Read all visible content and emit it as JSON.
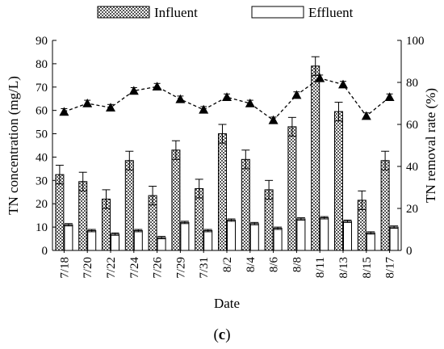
{
  "chart_data": {
    "type": "bar",
    "categories": [
      "7/18",
      "7/20",
      "7/22",
      "7/24",
      "7/26",
      "7/29",
      "7/31",
      "8/2",
      "8/4",
      "8/6",
      "8/8",
      "8/11",
      "8/13",
      "8/15",
      "8/17"
    ],
    "series": [
      {
        "name": "Influent",
        "axis": "left",
        "values": [
          32.5,
          29.5,
          22,
          38.5,
          23.5,
          43,
          26.5,
          50,
          39,
          26,
          53,
          79,
          59.5,
          21.5,
          38.5
        ],
        "errors": [
          4,
          4,
          4,
          4,
          4,
          4,
          4,
          4,
          4,
          4,
          4,
          4,
          4,
          4,
          4
        ]
      },
      {
        "name": "Effluent",
        "axis": "left",
        "values": [
          11,
          8.5,
          7,
          8.5,
          5.5,
          12,
          8.5,
          13,
          11.5,
          9.5,
          13.5,
          14,
          12.5,
          7.5,
          10
        ],
        "errors": [
          0.5,
          0.5,
          0.5,
          0.5,
          0.5,
          0.5,
          0.5,
          0.5,
          0.5,
          0.5,
          0.5,
          0.5,
          0.5,
          0.5,
          0.5
        ]
      },
      {
        "name": "TN removal rate",
        "axis": "right",
        "style": "dashed-line-triangle",
        "values": [
          66,
          70,
          68,
          76,
          78,
          72,
          67,
          73,
          70,
          62,
          74,
          82,
          79,
          64,
          73
        ],
        "errors": [
          1.5,
          1.5,
          1.5,
          1.5,
          1.5,
          1.5,
          1.5,
          1.5,
          1.5,
          1.5,
          1.5,
          1.5,
          1.5,
          1.5,
          1.5
        ]
      }
    ],
    "xlabel": "Date",
    "ylabel": "TN concentration (mg/L)",
    "y2label": "TN removal rate (%)",
    "ylim": [
      0,
      90
    ],
    "yticks": [
      0,
      10,
      20,
      30,
      40,
      50,
      60,
      70,
      80,
      90
    ],
    "y2lim": [
      0,
      100
    ],
    "y2ticks": [
      0,
      20,
      40,
      60,
      80,
      100
    ],
    "legend": {
      "placement": "top",
      "entries": [
        "Influent",
        "Effluent"
      ]
    },
    "grid": false,
    "colors": {
      "influent_fill": "#9a9a9a",
      "effluent_fill": "#ffffff",
      "line": "#000000"
    }
  },
  "caption": {
    "open": "(",
    "letter": "c",
    "close": ")"
  }
}
